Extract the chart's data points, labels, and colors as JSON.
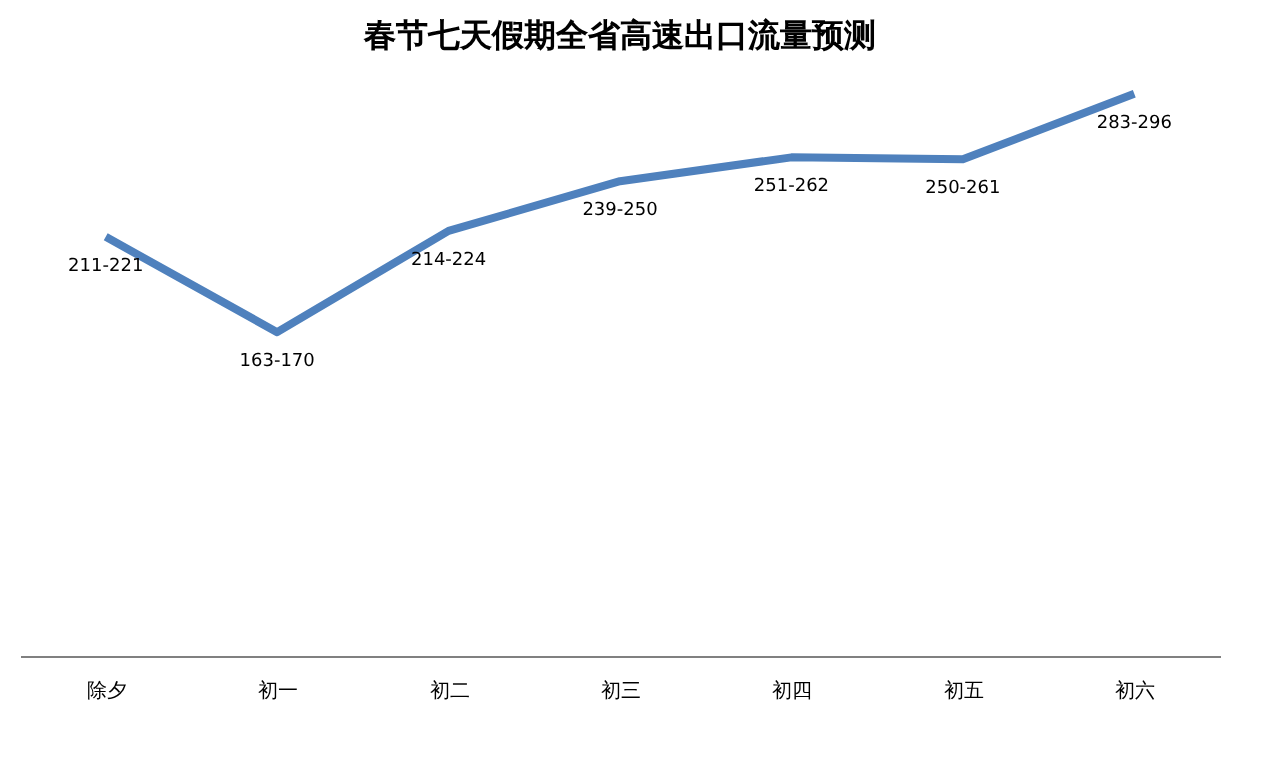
{
  "chart_data": {
    "type": "line",
    "title": "春节七天假期全省高速出口流量预测",
    "categories": [
      "除夕",
      "初一",
      "初二",
      "初三",
      "初四",
      "初五",
      "初六"
    ],
    "series": [
      {
        "color": "#4f81bd",
        "values": [
          211,
          163,
          214,
          239,
          251,
          250,
          283
        ],
        "value_labels": [
          "211-221",
          "163-170",
          "214-224",
          "239-250",
          "251-262",
          "250-261",
          "283-296"
        ]
      }
    ],
    "tick_labels": "x",
    "grid": false,
    "marker": "none",
    "line_style": "solid"
  }
}
